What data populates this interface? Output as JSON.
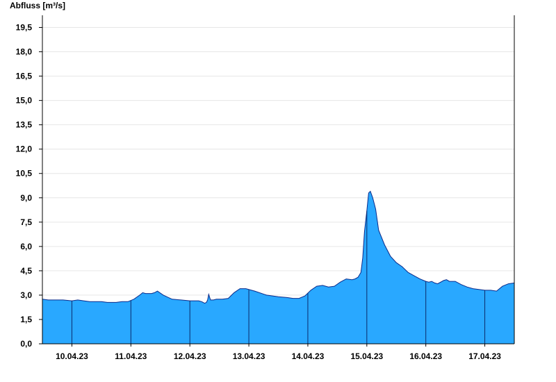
{
  "chart_data": {
    "type": "area",
    "title": "",
    "xlabel": "",
    "ylabel": "Abfluss [m³/s]",
    "ylim": [
      0,
      20.25
    ],
    "yticks": [
      "0,0",
      "1,5",
      "3,0",
      "4,5",
      "6,0",
      "7,5",
      "9,0",
      "10,5",
      "12,0",
      "13,5",
      "15,0",
      "16,5",
      "18,0",
      "19,5"
    ],
    "xlim_days": [
      9.5,
      17.5
    ],
    "day_labels": [
      "10.04.23",
      "11.04.23",
      "12.04.23",
      "13.04.23",
      "14.04.23",
      "15.04.23",
      "16.04.23",
      "17.04.23"
    ],
    "grid": true,
    "fill_color": "#29a8ff",
    "line_color": "#0a2a8a",
    "series": [
      {
        "name": "",
        "x": [
          9.5,
          9.6,
          9.7,
          9.85,
          10.0,
          10.1,
          10.2,
          10.3,
          10.45,
          10.5,
          10.6,
          10.75,
          10.85,
          10.95,
          11.05,
          11.15,
          11.2,
          11.25,
          11.35,
          11.4,
          11.45,
          11.55,
          11.7,
          11.85,
          12.0,
          12.15,
          12.2,
          12.25,
          12.28,
          12.3,
          12.32,
          12.35,
          12.4,
          12.45,
          12.55,
          12.65,
          12.75,
          12.85,
          12.95,
          13.1,
          13.3,
          13.5,
          13.65,
          13.75,
          13.85,
          13.95,
          14.05,
          14.15,
          14.25,
          14.35,
          14.45,
          14.55,
          14.65,
          14.75,
          14.8,
          14.85,
          14.9,
          14.93,
          14.96,
          15.0,
          15.03,
          15.06,
          15.1,
          15.15,
          15.2,
          15.3,
          15.4,
          15.5,
          15.6,
          15.7,
          15.8,
          15.9,
          16.0,
          16.05,
          16.1,
          16.15,
          16.2,
          16.3,
          16.35,
          16.4,
          16.5,
          16.6,
          16.7,
          16.8,
          16.9,
          17.0,
          17.1,
          17.2,
          17.3,
          17.4,
          17.5
        ],
        "values": [
          2.75,
          2.7,
          2.7,
          2.7,
          2.65,
          2.7,
          2.65,
          2.6,
          2.6,
          2.6,
          2.55,
          2.55,
          2.6,
          2.6,
          2.75,
          3.0,
          3.15,
          3.1,
          3.1,
          3.15,
          3.25,
          3.0,
          2.75,
          2.7,
          2.65,
          2.65,
          2.6,
          2.5,
          2.55,
          2.7,
          3.05,
          2.7,
          2.7,
          2.75,
          2.75,
          2.8,
          3.15,
          3.4,
          3.4,
          3.25,
          3.0,
          2.9,
          2.85,
          2.8,
          2.8,
          2.95,
          3.3,
          3.55,
          3.6,
          3.5,
          3.55,
          3.8,
          4.0,
          3.95,
          4.0,
          4.1,
          4.4,
          5.3,
          6.9,
          8.2,
          9.3,
          9.4,
          9.0,
          8.3,
          7.0,
          6.1,
          5.4,
          5.0,
          4.75,
          4.4,
          4.2,
          4.0,
          3.85,
          3.8,
          3.85,
          3.75,
          3.7,
          3.9,
          3.95,
          3.85,
          3.85,
          3.65,
          3.5,
          3.4,
          3.35,
          3.3,
          3.3,
          3.25,
          3.55,
          3.7,
          3.75
        ]
      }
    ]
  }
}
